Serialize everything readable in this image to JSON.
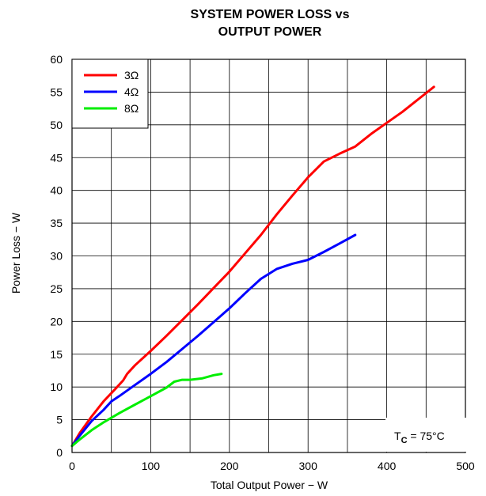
{
  "chart_data": {
    "type": "line",
    "title_lines": [
      "SYSTEM POWER LOSS vs",
      "OUTPUT POWER"
    ],
    "xlabel": "Total Output Power − W",
    "ylabel": "Power Loss − W",
    "xlim": [
      0,
      500
    ],
    "ylim": [
      0,
      60
    ],
    "x_ticks": [
      "0",
      "100",
      "200",
      "300",
      "400",
      "500"
    ],
    "y_ticks": [
      "0",
      "5",
      "10",
      "15",
      "20",
      "25",
      "30",
      "35",
      "40",
      "45",
      "50",
      "55",
      "60"
    ],
    "grid": true,
    "legend_position": "top-left",
    "annotation": {
      "main": "T",
      "subscript": "C",
      "rest": " = 75°C"
    },
    "series": [
      {
        "name": "3Ω",
        "color": "#ff0000",
        "points": [
          [
            0,
            1
          ],
          [
            10,
            3
          ],
          [
            25,
            5.5
          ],
          [
            40,
            7.8
          ],
          [
            55,
            9.7
          ],
          [
            65,
            11
          ],
          [
            70,
            12
          ],
          [
            80,
            13.3
          ],
          [
            100,
            15.5
          ],
          [
            120,
            17.8
          ],
          [
            140,
            20.2
          ],
          [
            160,
            22.6
          ],
          [
            180,
            25.1
          ],
          [
            200,
            27.6
          ],
          [
            220,
            30.4
          ],
          [
            240,
            33.2
          ],
          [
            260,
            36.3
          ],
          [
            280,
            39.2
          ],
          [
            300,
            42.0
          ],
          [
            320,
            44.4
          ],
          [
            340,
            45.6
          ],
          [
            360,
            46.7
          ],
          [
            380,
            48.6
          ],
          [
            400,
            50.3
          ],
          [
            420,
            52.0
          ],
          [
            440,
            53.9
          ],
          [
            460,
            55.8
          ]
        ]
      },
      {
        "name": "4Ω",
        "color": "#0000ff",
        "points": [
          [
            0,
            1
          ],
          [
            10,
            2.6
          ],
          [
            25,
            4.8
          ],
          [
            40,
            6.5
          ],
          [
            50,
            7.8
          ],
          [
            60,
            8.6
          ],
          [
            80,
            10.3
          ],
          [
            100,
            12.0
          ],
          [
            120,
            13.8
          ],
          [
            140,
            15.8
          ],
          [
            160,
            17.8
          ],
          [
            180,
            19.9
          ],
          [
            200,
            22.0
          ],
          [
            220,
            24.3
          ],
          [
            240,
            26.5
          ],
          [
            260,
            28.0
          ],
          [
            280,
            28.8
          ],
          [
            300,
            29.4
          ],
          [
            320,
            30.6
          ],
          [
            340,
            31.9
          ],
          [
            360,
            33.2
          ]
        ]
      },
      {
        "name": "8Ω",
        "color": "#00ee00",
        "points": [
          [
            0,
            1
          ],
          [
            10,
            2
          ],
          [
            25,
            3.4
          ],
          [
            40,
            4.6
          ],
          [
            60,
            6.0
          ],
          [
            80,
            7.3
          ],
          [
            100,
            8.6
          ],
          [
            120,
            9.9
          ],
          [
            130,
            10.8
          ],
          [
            140,
            11.1
          ],
          [
            150,
            11.1
          ],
          [
            165,
            11.3
          ],
          [
            180,
            11.8
          ],
          [
            190,
            12.0
          ]
        ]
      }
    ]
  }
}
